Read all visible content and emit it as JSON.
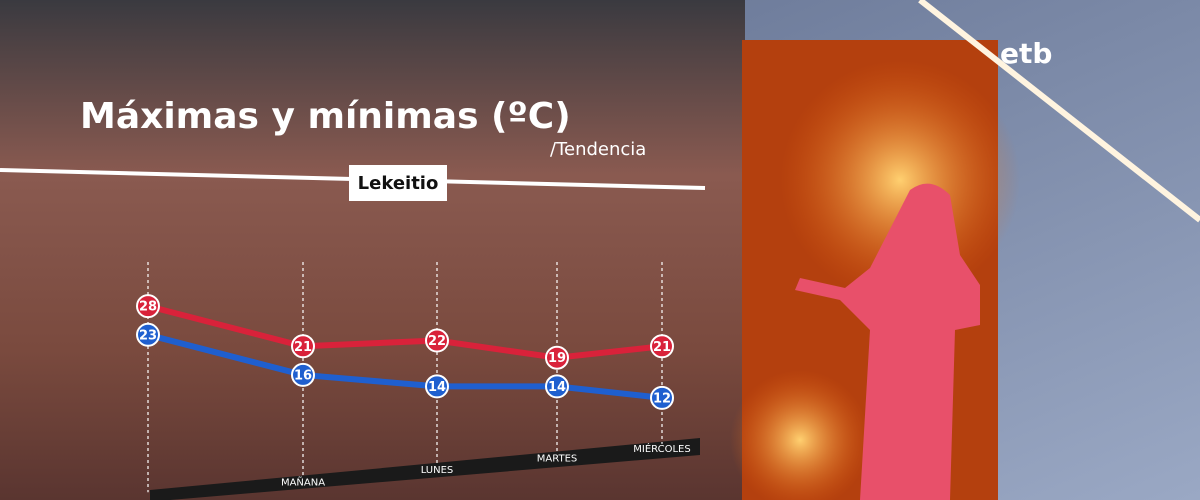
{
  "channel_logo": "etb",
  "chart_data": {
    "type": "line",
    "title": "Máximas y mínimas (ºC)",
    "subtitle": "/Tendencia",
    "location": "Lekeitio",
    "categories": [
      null,
      "MAÑANA",
      "LUNES",
      "MARTES",
      "MIÉRCOLES"
    ],
    "series": [
      {
        "name": "Máximas",
        "color": "#d9223a",
        "values": [
          28,
          21,
          22,
          19,
          21
        ]
      },
      {
        "name": "Mínimas",
        "color": "#1f5fcf",
        "values": [
          23,
          16,
          14,
          14,
          12
        ]
      }
    ],
    "ylim": [
      5,
      35
    ]
  }
}
